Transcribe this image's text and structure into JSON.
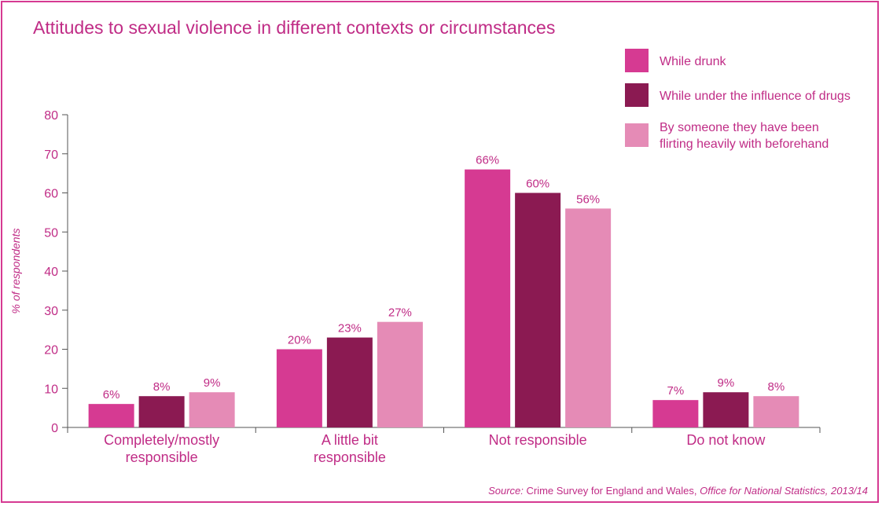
{
  "title": "Attitudes to sexual violence in different contexts or circumstances",
  "source": {
    "prefix": "Source:",
    "text": " Crime Survey for England and Wales, ",
    "org": "Office for National Statistics, 2013/14"
  },
  "colors": {
    "accent": "#c02c86",
    "axis": "#555555",
    "series": [
      "#d63a92",
      "#8b1a52",
      "#e58bb6"
    ]
  },
  "chart_data": {
    "type": "bar",
    "title": "Attitudes to sexual violence in different contexts or circumstances",
    "ylabel": "% of respondents",
    "xlabel": "",
    "ylim": [
      0,
      80
    ],
    "yticks": [
      0,
      10,
      20,
      30,
      40,
      50,
      60,
      70,
      80
    ],
    "grid": false,
    "legend_position": "top-right",
    "categories": [
      [
        "Completely/mostly",
        "responsible"
      ],
      [
        "A little bit",
        "responsible"
      ],
      [
        "Not responsible"
      ],
      [
        "Do not know"
      ]
    ],
    "series": [
      {
        "name": [
          "While drunk"
        ],
        "values": [
          6,
          20,
          66,
          7
        ],
        "labels": [
          "6%",
          "20%",
          "66%",
          "7%"
        ]
      },
      {
        "name": [
          "While under the influence of drugs"
        ],
        "values": [
          8,
          23,
          60,
          9
        ],
        "labels": [
          "8%",
          "23%",
          "60%",
          "9%"
        ]
      },
      {
        "name": [
          "By someone they have been",
          "flirting heavily with beforehand"
        ],
        "values": [
          9,
          27,
          56,
          8
        ],
        "labels": [
          "9%",
          "27%",
          "56%",
          "8%"
        ]
      }
    ]
  }
}
